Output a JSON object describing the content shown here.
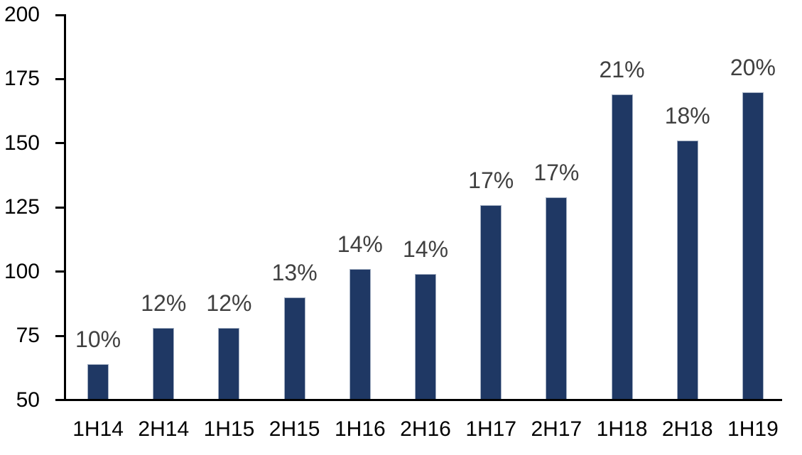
{
  "chart_data": {
    "type": "bar",
    "categories": [
      "1H14",
      "2H14",
      "1H15",
      "2H15",
      "1H16",
      "2H16",
      "1H17",
      "2H17",
      "1H18",
      "2H18",
      "1H19"
    ],
    "values": [
      64,
      78,
      78,
      90,
      101,
      99,
      126,
      129,
      169,
      151,
      170
    ],
    "bar_labels": [
      "10%",
      "12%",
      "12%",
      "13%",
      "14%",
      "14%",
      "17%",
      "17%",
      "21%",
      "18%",
      "20%"
    ],
    "yticks": [
      50,
      75,
      100,
      125,
      150,
      175,
      200
    ],
    "ylim": [
      50,
      200
    ],
    "grid": false,
    "legend": "none",
    "colors": {
      "bar_fill": "#1F3864",
      "bar_border": "#A3AFC2",
      "axis": "#000000",
      "tick_label": "#000000",
      "data_label": "#404040",
      "background": "#FFFFFF"
    }
  }
}
